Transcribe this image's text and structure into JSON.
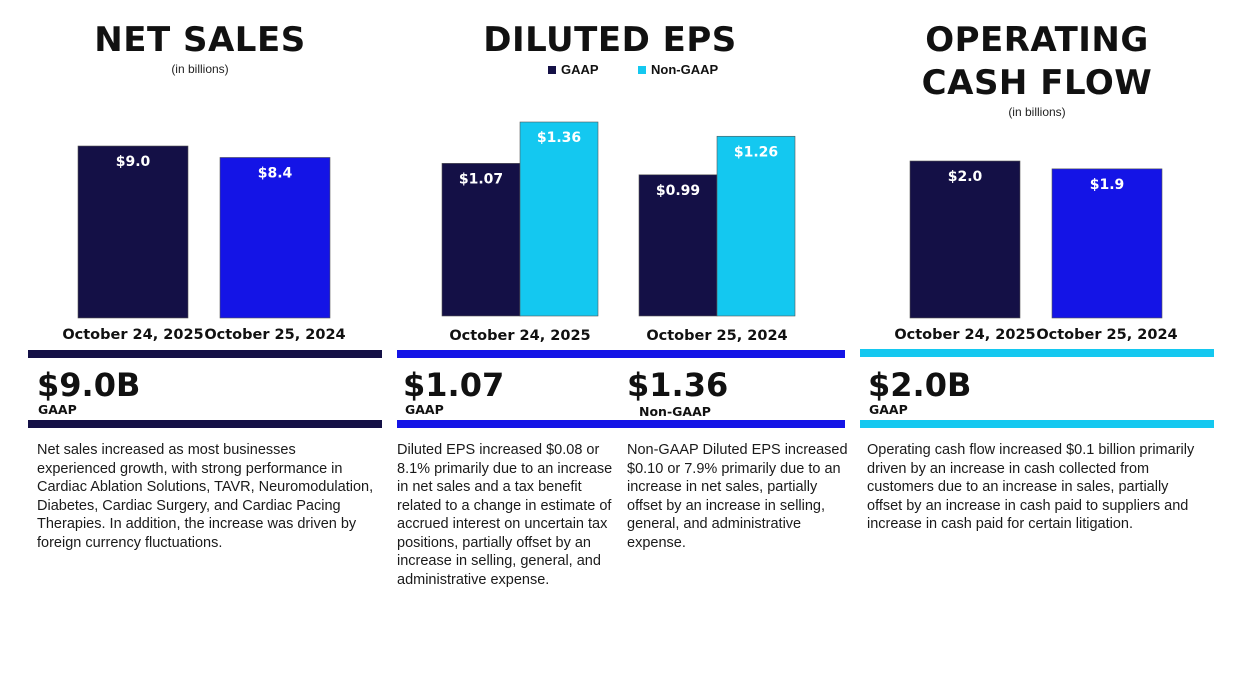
{
  "colors": {
    "navy": "#141046",
    "blue": "#1414E6",
    "cyan": "#14C8F0"
  },
  "panels": {
    "net_sales": {
      "title": "NET SALES",
      "subtitle": "(in billions)",
      "headline_value": "$9.0B",
      "headline_tag": "GAAP",
      "description": "Net sales increased as most businesses experienced growth, with strong performance in Cardiac Ablation Solutions, TAVR, Neuromodulation, Diabetes, Cardiac Surgery, and Cardiac Pacing Therapies. In addition, the increase was driven by foreign currency fluctuations."
    },
    "eps": {
      "title": "DILUTED EPS",
      "legend_gaap": "GAAP",
      "legend_nongaap": "Non-GAAP",
      "headline_gaap_value": "$1.07",
      "headline_gaap_tag": "GAAP",
      "headline_nongaap_value": "$1.36",
      "headline_nongaap_tag": "Non-GAAP",
      "description_gaap": "Diluted EPS increased $0.08 or 8.1% primarily due to an increase in net sales and a tax benefit related to a change in estimate of accrued interest on uncertain tax positions, partially offset by an increase in selling, general, and administrative expense.",
      "description_nongaap": "Non-GAAP Diluted EPS increased $0.10 or 7.9% primarily due to an increase in net sales, partially offset by an increase in selling, general, and administrative expense."
    },
    "cash_flow": {
      "title_line1": "OPERATING",
      "title_line2": "CASH FLOW",
      "subtitle": "(in billions)",
      "headline_value": "$2.0B",
      "headline_tag": "GAAP",
      "description": "Operating cash flow increased $0.1 billion primarily driven by an increase in cash collected from customers due to an increase in sales, partially offset by an increase in cash paid to suppliers and increase in cash paid for certain litigation."
    }
  },
  "chart_data": [
    {
      "type": "bar",
      "title": "NET SALES",
      "subtitle": "(in billions)",
      "categories": [
        "October 24, 2025",
        "October 25, 2024"
      ],
      "values": [
        9.0,
        8.4
      ],
      "labels": [
        "$9.0",
        "$8.4"
      ],
      "ylim": [
        0,
        9.0
      ]
    },
    {
      "type": "bar",
      "title": "DILUTED EPS",
      "categories": [
        "October 24, 2025",
        "October 25, 2024"
      ],
      "series": [
        {
          "name": "GAAP",
          "values": [
            1.07,
            0.99
          ],
          "labels": [
            "$1.07",
            "$0.99"
          ]
        },
        {
          "name": "Non-GAAP",
          "values": [
            1.36,
            1.26
          ],
          "labels": [
            "$1.36",
            "$1.26"
          ]
        }
      ],
      "ylim": [
        0,
        1.36
      ]
    },
    {
      "type": "bar",
      "title": "OPERATING CASH FLOW",
      "subtitle": "(in billions)",
      "categories": [
        "October 24, 2025",
        "October 25, 2024"
      ],
      "values": [
        2.0,
        1.9
      ],
      "labels": [
        "$2.0",
        "$1.9"
      ],
      "ylim": [
        0,
        2.0
      ]
    }
  ]
}
